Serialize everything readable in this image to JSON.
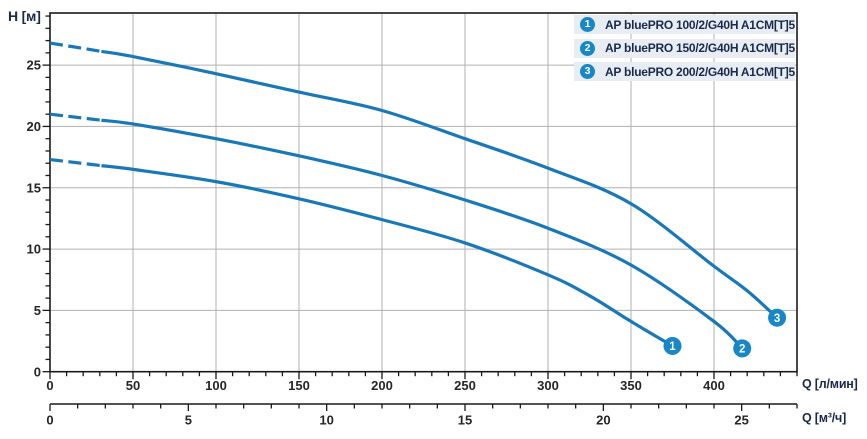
{
  "labels": {
    "y_axis_title": "H [м]",
    "x_axis_primary_title": "Q [л/мин]",
    "x_axis_secondary_title": "Q [м³/ч]"
  },
  "chart_data": {
    "type": "line",
    "title": "",
    "ylabel": "H [м]",
    "xlabel": "Q [л/мин]",
    "xlabel_secondary": "Q [м³/ч]",
    "xlim": [
      0,
      450
    ],
    "ylim": [
      0,
      29.25
    ],
    "x2lim": [
      0,
      27
    ],
    "x2_to_x_ratio": 16.6667,
    "grid": true,
    "legend_position": "top-right",
    "x_major_tick_labels": [
      0,
      50,
      100,
      150,
      200,
      250,
      300,
      350,
      400
    ],
    "x_minor_step": 10,
    "y_major_tick_labels": [
      0,
      5,
      10,
      15,
      20,
      25
    ],
    "y_minor_step": 1,
    "x2_major_tick_labels": [
      0,
      5,
      10,
      15,
      20,
      25
    ],
    "x2_minor_step": 1,
    "series": [
      {
        "id": "1",
        "name": "AP bluePRO 100/2/G40H A1CM[T]5",
        "dashed_until_q": 31,
        "points_q_lmin_h_m": [
          [
            0,
            17.3
          ],
          [
            50,
            16.5
          ],
          [
            100,
            15.5
          ],
          [
            150,
            14.1
          ],
          [
            200,
            12.4
          ],
          [
            250,
            10.5
          ],
          [
            300,
            7.9
          ],
          [
            325,
            6.2
          ],
          [
            350,
            4.1
          ],
          [
            375,
            2.1
          ]
        ],
        "end_marker": {
          "q": 375,
          "h": 2.1,
          "label": "1"
        }
      },
      {
        "id": "2",
        "name": "AP bluePRO 150/2/G40H A1CM[T]5",
        "dashed_until_q": 31,
        "points_q_lmin_h_m": [
          [
            0,
            21.0
          ],
          [
            50,
            20.2
          ],
          [
            100,
            19.0
          ],
          [
            150,
            17.6
          ],
          [
            200,
            16.0
          ],
          [
            250,
            14.0
          ],
          [
            300,
            11.7
          ],
          [
            350,
            8.7
          ],
          [
            400,
            4.1
          ],
          [
            417,
            1.9
          ]
        ],
        "end_marker": {
          "q": 417,
          "h": 1.9,
          "label": "2"
        }
      },
      {
        "id": "3",
        "name": "AP bluePRO 200/2/G40H A1CM[T]5",
        "dashed_until_q": 31,
        "points_q_lmin_h_m": [
          [
            0,
            26.8
          ],
          [
            50,
            25.7
          ],
          [
            100,
            24.3
          ],
          [
            150,
            22.8
          ],
          [
            200,
            21.3
          ],
          [
            250,
            19.0
          ],
          [
            300,
            16.6
          ],
          [
            350,
            13.7
          ],
          [
            400,
            8.6
          ],
          [
            420,
            6.6
          ],
          [
            438,
            4.4
          ]
        ],
        "end_marker": {
          "q": 438,
          "h": 4.4,
          "label": "3"
        }
      }
    ],
    "colors": {
      "curve": "#1878b8",
      "marker": "#1787c7",
      "grid": "#b0b0b0",
      "axis": "#1a1a1a",
      "tick_label": "#262626",
      "legend_row_bg": "#e8edf3",
      "legend_text": "#1b2a4a",
      "axis_title_text": "#1b2a4a"
    }
  }
}
